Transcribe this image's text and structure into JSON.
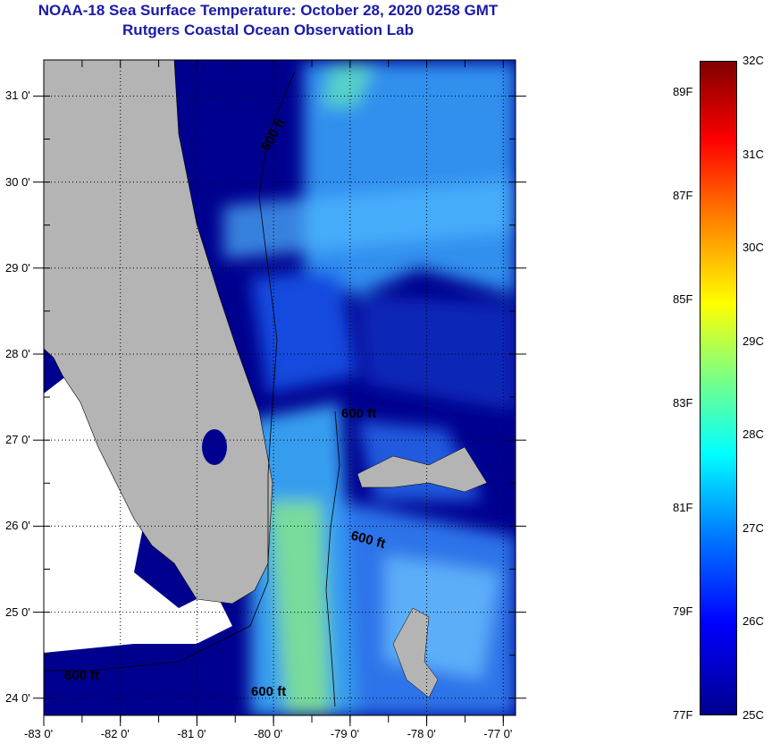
{
  "title": {
    "line1": "NOAA-18 Sea Surface Temperature:  October 28, 2020 0258 GMT",
    "line2": "Rutgers Coastal Ocean Observation Lab"
  },
  "map": {
    "lon_ticks": [
      {
        "value": -83,
        "label": "-83 0'"
      },
      {
        "value": -82,
        "label": "-82 0'"
      },
      {
        "value": -81,
        "label": "-81 0'"
      },
      {
        "value": -80,
        "label": "-80 0'"
      },
      {
        "value": -79,
        "label": "-79 0'"
      },
      {
        "value": -78,
        "label": "-78 0'"
      },
      {
        "value": -77,
        "label": "-77 0'"
      }
    ],
    "lat_ticks": [
      {
        "value": 31,
        "label": "31 0'"
      },
      {
        "value": 30,
        "label": "30 0'"
      },
      {
        "value": 29,
        "label": "29 0'"
      },
      {
        "value": 28,
        "label": "28 0'"
      },
      {
        "value": 27,
        "label": "27 0'"
      },
      {
        "value": 26,
        "label": "26 0'"
      },
      {
        "value": 25,
        "label": "25 0'"
      },
      {
        "value": 24,
        "label": "24 0'"
      }
    ],
    "lon_range": [
      -83,
      -76.84
    ],
    "lat_range": [
      23.8,
      31.42
    ],
    "contour_labels": [
      "600 ft",
      "600 ft",
      "600 ft",
      "600 ft",
      "600 ft"
    ],
    "colors": {
      "land": "#b4b4b4",
      "nodata": "#ffffff",
      "cold": "#00008f",
      "mid": "#1e50ff",
      "warm": "#50d0ff"
    }
  },
  "colorbar": {
    "celsius_range": [
      25,
      32
    ],
    "celsius_labels": [
      {
        "value": 32,
        "label": "32C"
      },
      {
        "value": 31,
        "label": "31C"
      },
      {
        "value": 30,
        "label": "30C"
      },
      {
        "value": 29,
        "label": "29C"
      },
      {
        "value": 28,
        "label": "28C"
      },
      {
        "value": 27,
        "label": "27C"
      },
      {
        "value": 26,
        "label": "26C"
      },
      {
        "value": 25,
        "label": "25C"
      }
    ],
    "fahrenheit_labels": [
      {
        "value": 89,
        "label": "89F"
      },
      {
        "value": 87,
        "label": "87F"
      },
      {
        "value": 85,
        "label": "85F"
      },
      {
        "value": 83,
        "label": "83F"
      },
      {
        "value": 81,
        "label": "81F"
      },
      {
        "value": 79,
        "label": "79F"
      },
      {
        "value": 77,
        "label": "77F"
      }
    ]
  }
}
